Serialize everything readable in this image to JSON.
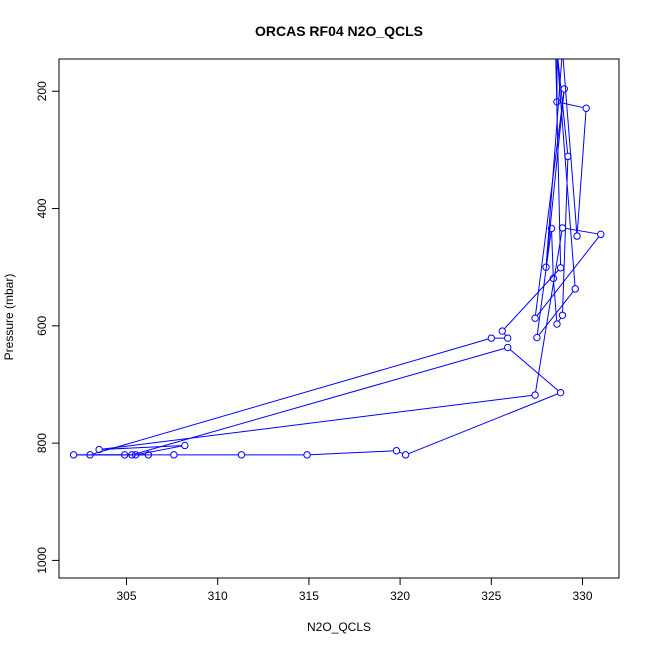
{
  "chart_data": {
    "type": "line",
    "title": "ORCAS RF04 N2O_QCLS",
    "xlabel": "N2O_QCLS",
    "ylabel": "Pressure (mbar)",
    "xlim": [
      301.3,
      332.0
    ],
    "ylim": [
      1030,
      145
    ],
    "y_inverted": true,
    "x_ticks": [
      305,
      310,
      315,
      320,
      325,
      330
    ],
    "y_ticks": [
      200,
      400,
      600,
      800,
      1000
    ],
    "grid": false,
    "series_color": "#0000ff",
    "marker": "open-circle",
    "points": [
      [
        328.3,
        100
      ],
      [
        328.5,
        100
      ],
      [
        329.2,
        311
      ],
      [
        328.9,
        582
      ],
      [
        328.6,
        597
      ],
      [
        328.4,
        519
      ],
      [
        328.3,
        434
      ],
      [
        327.5,
        620
      ],
      [
        329.6,
        537
      ],
      [
        328.6,
        135
      ],
      [
        328.6,
        218
      ],
      [
        330.2,
        229
      ],
      [
        329.7,
        447
      ],
      [
        328.9,
        130
      ],
      [
        328.0,
        500
      ],
      [
        329.0,
        196
      ],
      [
        327.4,
        587
      ],
      [
        331.0,
        444
      ],
      [
        328.9,
        433
      ],
      [
        327.4,
        718
      ],
      [
        303.5,
        811
      ],
      [
        308.2,
        804
      ],
      [
        305.5,
        820
      ],
      [
        306.2,
        820
      ],
      [
        302.1,
        820
      ],
      [
        304.9,
        820
      ],
      [
        307.6,
        820
      ],
      [
        311.3,
        820
      ],
      [
        314.9,
        820
      ],
      [
        319.8,
        813
      ],
      [
        320.3,
        820
      ],
      [
        328.8,
        714
      ],
      [
        325.9,
        637
      ],
      [
        305.3,
        820
      ],
      [
        303.0,
        820
      ],
      [
        325.0,
        621
      ],
      [
        325.9,
        621
      ],
      [
        325.6,
        609
      ],
      [
        328.8,
        501
      ],
      [
        328.5,
        100
      ]
    ]
  }
}
